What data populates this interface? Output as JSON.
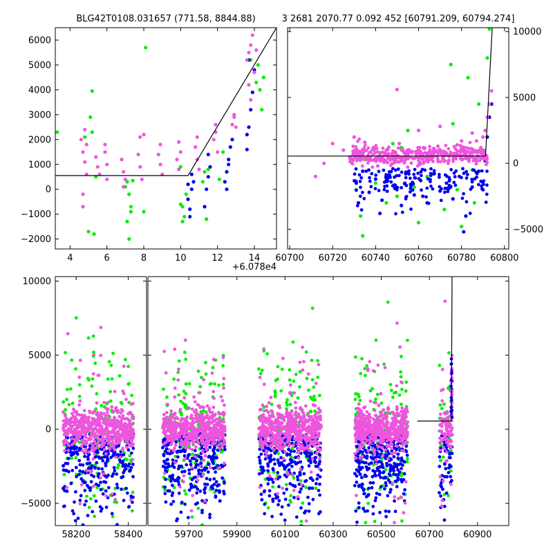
{
  "title_left": "BLG42T0108.031657 (771.58, 8844.88)",
  "title_right": "3 2681 2070.77 0.092 452 [60791.209, 60794.274]",
  "colors": {
    "green": "#00ee00",
    "blue": "#0000ee",
    "pink": "#ee55dd",
    "line": "#000000"
  },
  "chart_data": [
    {
      "type": "scatter",
      "name": "zoom-left",
      "title": "BLG42T0108.031657 (771.58, 8844.88)",
      "xlim": [
        3.2,
        15.2
      ],
      "ylim": [
        -2400,
        6500
      ],
      "x_offset_label": "+6.078e4",
      "xticks": [
        4,
        6,
        8,
        10,
        12,
        14
      ],
      "xtick_labels": [
        "4",
        "6",
        "8",
        "10",
        "12",
        "14"
      ],
      "yticks": [
        -2000,
        -1000,
        0,
        1000,
        2000,
        3000,
        4000,
        5000,
        6000
      ],
      "ytick_labels": [
        "−2000",
        "−1000",
        "0",
        "1000",
        "2000",
        "3000",
        "4000",
        "5000",
        "6000"
      ],
      "model_line": {
        "x": [
          3.2,
          10.4,
          15.2
        ],
        "y": [
          550,
          550,
          6500
        ]
      },
      "series": [
        {
          "name": "green",
          "color": "#00ee00",
          "x": [
            3.3,
            4.8,
            5.2,
            5.1,
            5.4,
            5.0,
            5.3,
            7.1,
            7.2,
            7.3,
            7.1,
            7.2,
            7.0,
            7.4,
            7.3,
            8.1,
            8.0,
            10.0,
            10.1,
            10.3,
            10.2,
            10.0,
            10.1,
            11.2,
            11.4,
            11.3,
            11.5,
            12.1,
            12.3,
            14.1,
            14.3,
            14.2,
            13.8,
            14.5,
            14.4,
            5.2
          ],
          "y": [
            2300,
            2100,
            3950,
            2900,
            500,
            -1700,
            -1800,
            300,
            -200,
            -700,
            -1300,
            -2000,
            100,
            350,
            -900,
            5700,
            -900,
            -600,
            -1300,
            -200,
            -1100,
            900,
            -700,
            300,
            -1200,
            700,
            800,
            400,
            1500,
            4300,
            4000,
            5000,
            5200,
            4500,
            3200,
            2300
          ]
        },
        {
          "name": "blue",
          "color": "#0000ee",
          "x": [
            10.4,
            10.5,
            10.6,
            10.7,
            10.5,
            10.6,
            10.4,
            11.3,
            11.4,
            11.5,
            11.6,
            11.5,
            12.4,
            12.5,
            12.6,
            12.7,
            12.5,
            12.6,
            13.6,
            13.7,
            13.8,
            13.9,
            14.0,
            13.7,
            13.6,
            12.8
          ],
          "y": [
            -400,
            -800,
            0,
            300,
            -1100,
            600,
            200,
            -700,
            0,
            500,
            900,
            1400,
            300,
            700,
            1200,
            1700,
            0,
            1000,
            1600,
            2500,
            3200,
            3900,
            4800,
            5200,
            2200,
            2000
          ]
        },
        {
          "name": "pink",
          "color": "#ee55dd",
          "x": [
            4.6,
            4.7,
            4.8,
            4.9,
            4.7,
            4.8,
            4.9,
            5.4,
            5.5,
            5.6,
            5.9,
            6.0,
            6.0,
            5.9,
            6.8,
            6.9,
            7.0,
            6.9,
            7.7,
            7.8,
            7.9,
            7.8,
            8.8,
            8.9,
            9.0,
            8.9,
            9.8,
            9.9,
            10.0,
            9.9,
            10.8,
            10.9,
            11.0,
            10.9,
            11.8,
            11.9,
            12.0,
            11.9,
            12.8,
            12.9,
            13.0,
            12.9,
            13.6,
            13.7,
            13.8,
            13.9,
            14.0,
            13.7,
            13.8,
            14.1,
            4.7,
            8.0
          ],
          "y": [
            2000,
            1500,
            1100,
            600,
            -200,
            2400,
            1800,
            1300,
            900,
            600,
            1500,
            1000,
            400,
            1800,
            1200,
            700,
            400,
            100,
            1400,
            900,
            400,
            2100,
            1400,
            1000,
            600,
            1800,
            1200,
            800,
            1500,
            1900,
            1700,
            1200,
            800,
            2100,
            2000,
            2600,
            1500,
            2300,
            2600,
            3000,
            2500,
            2900,
            5200,
            5500,
            5800,
            6200,
            4700,
            4200,
            3600,
            5600,
            -700,
            2200
          ]
        }
      ]
    },
    {
      "type": "scatter",
      "name": "zoom-right",
      "title": "3 2681 2070.77 0.092 452 [60791.209, 60794.274]",
      "xlim": [
        60699,
        60802
      ],
      "ylim": [
        -6500,
        10300
      ],
      "xticks": [
        60700,
        60720,
        60740,
        60760,
        60780,
        60800
      ],
      "xtick_labels": [
        "60700",
        "60720",
        "60740",
        "60760",
        "60780",
        "60800"
      ],
      "yticks": [
        -5000,
        0,
        5000,
        10000
      ],
      "ytick_labels": [
        "−5000",
        "0",
        "5000",
        "10000"
      ],
      "model_line": {
        "x": [
          60699,
          60791.2,
          60794.3,
          60802
        ],
        "y": [
          550,
          550,
          10300,
          10300
        ]
      },
      "series": [
        {
          "name": "green",
          "color": "#00ee00",
          "x": [
            60731,
            60733,
            60735,
            60740,
            60742,
            60745,
            60750,
            60752,
            60758,
            60760,
            60764,
            60768,
            60772,
            60775,
            60778,
            60780,
            60783,
            60785,
            60788,
            60790,
            60792,
            60793,
            60734,
            60748,
            60776,
            60786,
            60755
          ],
          "y": [
            -2000,
            -4000,
            300,
            -1500,
            800,
            -3000,
            -2500,
            1200,
            -1800,
            -4500,
            -1000,
            900,
            -3500,
            7500,
            -2000,
            -4800,
            6500,
            -500,
            4500,
            1000,
            8000,
            10200,
            -5500,
            1500,
            3000,
            -3000,
            2500
          ]
        },
        {
          "name": "blue",
          "color": "#0000ee",
          "x": [
            60731,
            60732,
            60734,
            60737,
            60740,
            60743,
            60746,
            60749,
            60752,
            60755,
            60758,
            60761,
            60764,
            60767,
            60770,
            60773,
            60776,
            60779,
            60782,
            60785,
            60788,
            60790,
            60791,
            60792,
            60793,
            60794,
            60742,
            60762,
            60781
          ],
          "y": [
            -1500,
            -3000,
            -600,
            -2200,
            -1200,
            -2800,
            -900,
            -1900,
            -3200,
            -700,
            -2400,
            -1300,
            -3000,
            -800,
            -2100,
            -1500,
            -2700,
            -1000,
            -4000,
            -1800,
            -600,
            -2000,
            200,
            2000,
            3500,
            4500,
            -3800,
            -2500,
            -5200
          ]
        },
        {
          "name": "pink",
          "color": "#ee55dd",
          "x": [
            60712,
            60716,
            60720,
            60725,
            60728,
            60730,
            60733,
            60736,
            60739,
            60742,
            60745,
            60748,
            60751,
            60754,
            60757,
            60760,
            60763,
            60766,
            60769,
            60772,
            60775,
            60778,
            60781,
            60784,
            60787,
            60789,
            60790,
            60791,
            60792,
            60793,
            60794,
            60750,
            60770,
            60760,
            60741,
            60780,
            60735,
            60785
          ],
          "y": [
            -1000,
            0,
            1500,
            1000,
            500,
            2000,
            800,
            300,
            1200,
            700,
            1000,
            400,
            1500,
            600,
            900,
            1100,
            800,
            600,
            1300,
            900,
            700,
            1400,
            1000,
            800,
            1700,
            1200,
            2000,
            2500,
            3500,
            4500,
            5500,
            5600,
            2800,
            2500,
            -200,
            1700,
            1600,
            2300
          ]
        }
      ]
    },
    {
      "type": "scatter",
      "name": "full-lightcurve",
      "xlim": [
        58120,
        61030
      ],
      "ylim": [
        -6500,
        10300
      ],
      "segments": [
        [
          58120,
          58470
        ],
        [
          59530,
          61030
        ]
      ],
      "segment_gap": 58470,
      "xticks": [
        58200,
        58400,
        59700,
        59900,
        60100,
        60300,
        60500,
        60700,
        60900
      ],
      "xtick_labels": [
        "58200",
        "58400",
        "59700",
        "59900",
        "60100",
        "60300",
        "60500",
        "60700",
        "60900"
      ],
      "yticks": [
        -5000,
        0,
        5000,
        10000
      ],
      "ytick_labels": [
        "−5000",
        "0",
        "5000",
        "10000"
      ],
      "model_line": {
        "x": [
          60650,
          60791.2,
          60794.3
        ],
        "y": [
          550,
          550,
          10300
        ]
      },
      "seasons": [
        [
          58150,
          58420
        ],
        [
          59590,
          59850
        ],
        [
          59990,
          60250
        ],
        [
          60390,
          60610
        ],
        [
          60740,
          60795
        ]
      ],
      "series": [
        {
          "name": "green",
          "color": "#00ee00"
        },
        {
          "name": "blue",
          "color": "#0000ee"
        },
        {
          "name": "pink",
          "color": "#ee55dd"
        }
      ]
    }
  ]
}
